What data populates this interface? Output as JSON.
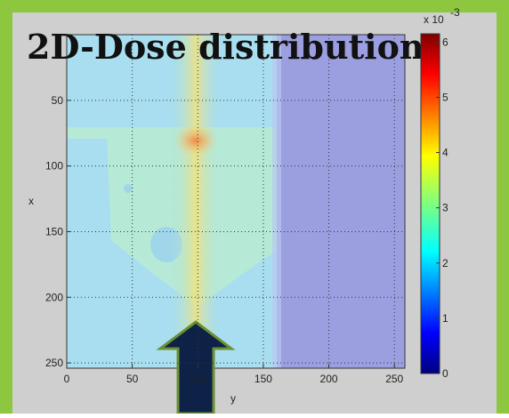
{
  "chart_data": {
    "type": "heatmap",
    "title": "2D-Dose distribution",
    "x_label": "y",
    "y_label": "x",
    "xlim": [
      0,
      258
    ],
    "xticks": [
      0,
      50,
      100,
      150,
      200,
      250
    ],
    "ylim": [
      0,
      254
    ],
    "yticks": [
      50,
      100,
      150,
      200,
      250
    ],
    "colorbar_lim": [
      0,
      6.15
    ],
    "colorbar_ticks": [
      0,
      1,
      2,
      3,
      4,
      5,
      6
    ],
    "colorbar_label": "x 10",
    "colorbar_exponent": "-3"
  }
}
